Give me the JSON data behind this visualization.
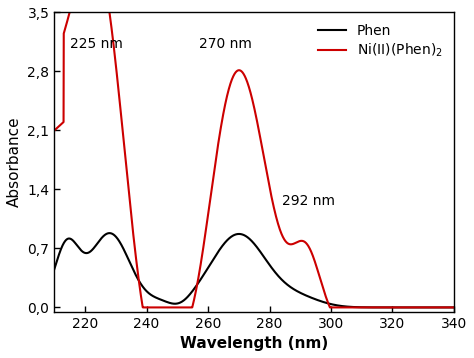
{
  "title": "",
  "xlabel": "Wavelength (nm)",
  "ylabel": "Absorbance",
  "xlim": [
    210,
    340
  ],
  "ylim": [
    -0.05,
    3.5
  ],
  "yticks": [
    0.0,
    0.7,
    1.4,
    2.1,
    2.8,
    3.5
  ],
  "ytick_labels": [
    "0,0",
    "0,7",
    "1,4",
    "2,1",
    "2,8",
    "3,5"
  ],
  "xticks": [
    220,
    240,
    260,
    280,
    300,
    320,
    340
  ],
  "phen_color": "#000000",
  "ni_color": "#cc0000",
  "background_color": "#ffffff",
  "font_size": 10,
  "label_font_size": 11,
  "linewidth": 1.5
}
